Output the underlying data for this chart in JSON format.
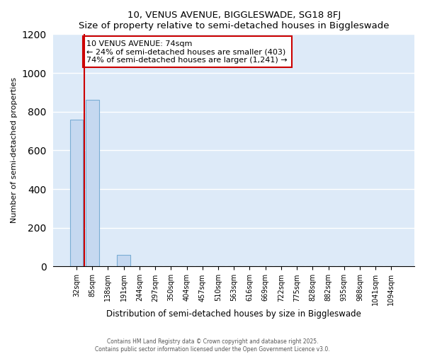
{
  "title": "10, VENUS AVENUE, BIGGLESWADE, SG18 8FJ",
  "subtitle": "Size of property relative to semi-detached houses in Biggleswade",
  "xlabel": "Distribution of semi-detached houses by size in Biggleswade",
  "ylabel": "Number of semi-detached properties",
  "categories": [
    "32sqm",
    "85sqm",
    "138sqm",
    "191sqm",
    "244sqm",
    "297sqm",
    "350sqm",
    "404sqm",
    "457sqm",
    "510sqm",
    "563sqm",
    "616sqm",
    "669sqm",
    "722sqm",
    "775sqm",
    "828sqm",
    "882sqm",
    "935sqm",
    "988sqm",
    "1041sqm",
    "1094sqm"
  ],
  "values": [
    760,
    860,
    0,
    60,
    0,
    0,
    0,
    0,
    0,
    0,
    0,
    0,
    0,
    0,
    0,
    0,
    0,
    0,
    0,
    0,
    0
  ],
  "bar_color": "#c5d8f0",
  "bar_edge_color": "#7aadd4",
  "property_line_index": 1,
  "annotation_line1": "10 VENUS AVENUE: 74sqm",
  "annotation_line2": "← 24% of semi-detached houses are smaller (403)",
  "annotation_line3": "74% of semi-detached houses are larger (1,241) →",
  "annotation_box_color": "#ffffff",
  "annotation_border_color": "#cc0000",
  "property_line_color": "#cc0000",
  "ylim": [
    0,
    1200
  ],
  "yticks": [
    0,
    200,
    400,
    600,
    800,
    1000,
    1200
  ],
  "plot_bg_color": "#ddeaf8",
  "fig_bg_color": "#ffffff",
  "grid_color": "#ffffff",
  "footer_line1": "Contains HM Land Registry data © Crown copyright and database right 2025.",
  "footer_line2": "Contains public sector information licensed under the Open Government Licence v3.0."
}
